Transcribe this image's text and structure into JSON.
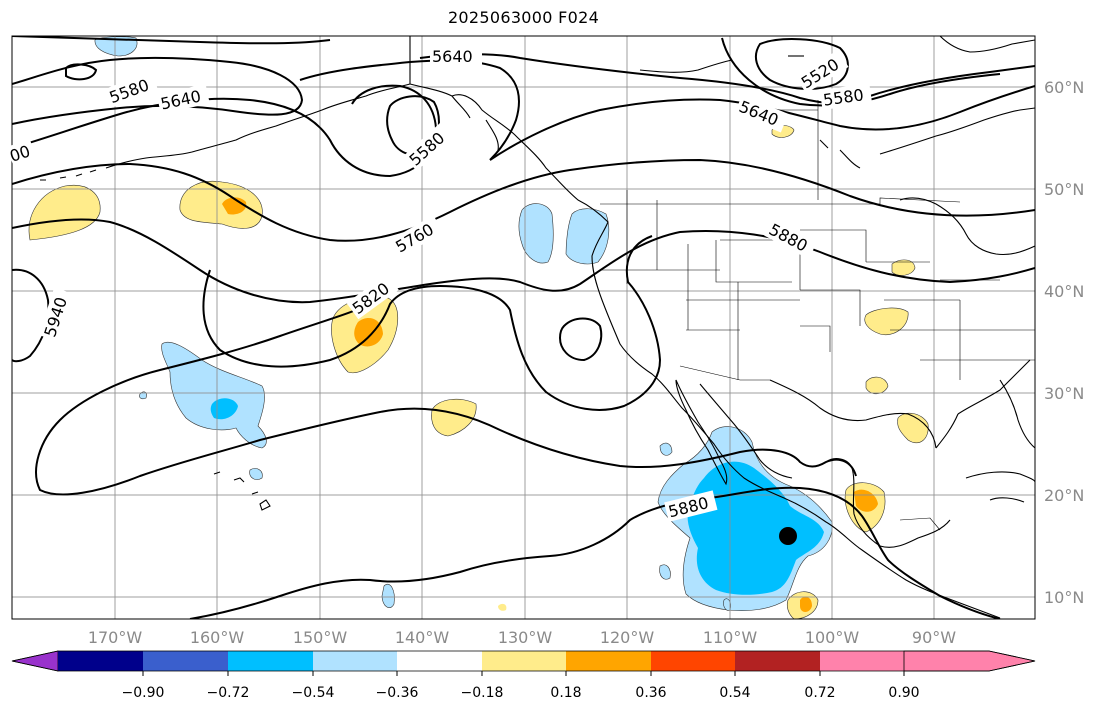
{
  "title": "2025063000 F024",
  "lat_labels": [
    "60°N",
    "50°N",
    "40°N",
    "30°N",
    "20°N",
    "10°N"
  ],
  "lon_labels": [
    "170°W",
    "160°W",
    "150°W",
    "140°W",
    "130°W",
    "120°W",
    "110°W",
    "100°W",
    "90°W"
  ],
  "contour_labels": [
    "5640",
    "5580",
    "5640",
    "5520",
    "5580",
    "5640",
    "5580",
    "5760",
    "5820",
    "5880",
    "5940",
    "5880",
    "00"
  ],
  "colorbar": {
    "ticks": [
      "−0.90",
      "−0.72",
      "−0.54",
      "−0.36",
      "−0.18",
      "0.18",
      "0.36",
      "0.54",
      "0.72",
      "0.90"
    ],
    "colors": [
      "#9932cc",
      "#00008b",
      "#3a5fcd",
      "#00bfff",
      "#b0e2ff",
      "#ffffff",
      "#ffec8b",
      "#ffa500",
      "#ff4500",
      "#b22222",
      "#ff82ab"
    ]
  },
  "storm_marker": "black-dot"
}
